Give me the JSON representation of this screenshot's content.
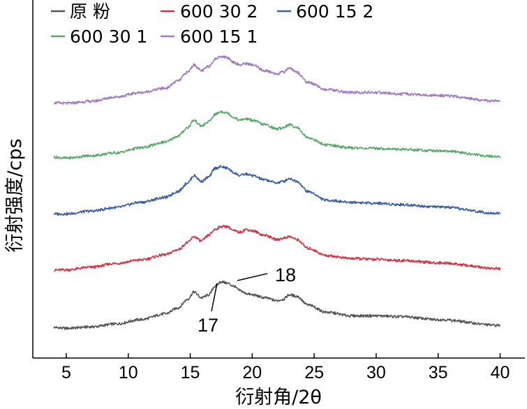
{
  "chart_data": {
    "type": "line",
    "xlabel": "衍射角/2θ",
    "ylabel": "衍射强度/cps",
    "xlim": [
      2.3,
      42.0
    ],
    "xticks": [
      5,
      10,
      15,
      20,
      25,
      30,
      35,
      40
    ],
    "ylim": [
      0,
      100
    ],
    "y_tick_labels": false,
    "grid": false,
    "legend_position": "top-left",
    "series": [
      {
        "name": "原 粉",
        "color": "#555555",
        "x": [
          4,
          5,
          7,
          9,
          11,
          13,
          14,
          14.8,
          15.3,
          15.9,
          16.5,
          17.0,
          17.5,
          18.0,
          18.5,
          19.0,
          19.5,
          20.0,
          21.0,
          22.0,
          22.5,
          23.0,
          23.6,
          24.5,
          26.0,
          28.0,
          30.0,
          32.0,
          35.0,
          40.0
        ],
        "y": [
          3.8,
          3.5,
          4.0,
          5.0,
          6.5,
          8.5,
          10.5,
          13.5,
          16.0,
          14.0,
          15.0,
          18.0,
          19.5,
          19.0,
          18.0,
          16.5,
          15.5,
          15.0,
          14.0,
          13.0,
          13.5,
          15.0,
          14.5,
          11.5,
          9.0,
          7.8,
          7.8,
          7.5,
          6.5,
          4.5
        ]
      },
      {
        "name": "600 30 2",
        "color": "#d43545",
        "x": [
          4,
          5,
          7,
          9,
          11,
          13,
          14,
          14.8,
          15.3,
          15.9,
          16.5,
          17.0,
          17.5,
          18.0,
          18.5,
          19.0,
          19.5,
          20.0,
          21.0,
          22.0,
          22.5,
          23.0,
          23.6,
          24.5,
          26.0,
          28.0,
          30.0,
          32.0,
          35.0,
          40.0
        ],
        "y": [
          23.5,
          23.6,
          24.5,
          25.8,
          27.0,
          28.8,
          30.5,
          33.0,
          35.0,
          33.5,
          35.5,
          37.5,
          38.5,
          38.5,
          37.0,
          36.5,
          37.5,
          37.0,
          35.5,
          34.0,
          34.5,
          35.0,
          34.0,
          31.0,
          28.5,
          27.5,
          27.2,
          26.8,
          26.0,
          24.0
        ]
      },
      {
        "name": "600 15 2",
        "color": "#3a5ea8",
        "x": [
          4,
          5,
          7,
          9,
          11,
          13,
          14,
          14.8,
          15.3,
          15.9,
          16.5,
          17.0,
          17.5,
          18.0,
          18.5,
          19.0,
          19.5,
          20.0,
          21.0,
          22.0,
          22.5,
          23.0,
          23.6,
          24.5,
          26.0,
          28.0,
          30.0,
          32.0,
          35.0,
          40.0
        ],
        "y": [
          42.8,
          42.8,
          43.8,
          45.0,
          46.8,
          48.5,
          50.5,
          53.5,
          56.0,
          54.0,
          55.5,
          58.5,
          59.0,
          58.5,
          57.0,
          56.0,
          56.5,
          56.0,
          54.5,
          53.5,
          54.0,
          55.0,
          54.0,
          50.5,
          47.5,
          46.8,
          46.5,
          46.0,
          45.2,
          43.0
        ]
      },
      {
        "name": "600 30 1",
        "color": "#5aa96a",
        "x": [
          4,
          5,
          7,
          9,
          11,
          13,
          14,
          14.8,
          15.3,
          15.9,
          16.5,
          17.0,
          17.5,
          18.0,
          18.5,
          19.0,
          19.5,
          20.0,
          21.0,
          22.0,
          22.5,
          23.0,
          23.6,
          24.5,
          26.0,
          28.0,
          30.0,
          32.0,
          35.0,
          40.0
        ],
        "y": [
          62.3,
          62.0,
          62.8,
          63.8,
          65.5,
          67.5,
          69.5,
          72.5,
          75.0,
          73.0,
          74.5,
          77.0,
          78.0,
          77.5,
          76.0,
          75.0,
          75.5,
          75.0,
          73.5,
          72.0,
          72.5,
          73.5,
          72.5,
          69.0,
          66.5,
          65.5,
          65.3,
          65.0,
          64.5,
          62.5
        ]
      },
      {
        "name": "600 15 1",
        "color": "#a07ac2",
        "x": [
          4,
          5,
          7,
          9,
          11,
          13,
          14,
          14.8,
          15.3,
          15.9,
          16.5,
          17.0,
          17.5,
          18.0,
          18.5,
          19.0,
          19.5,
          20.0,
          21.0,
          22.0,
          22.5,
          23.0,
          23.6,
          24.5,
          26.0,
          28.0,
          30.0,
          32.0,
          35.0,
          40.0
        ],
        "y": [
          81.0,
          80.8,
          81.5,
          83.0,
          84.5,
          86.0,
          88.5,
          91.5,
          94.0,
          92.0,
          93.5,
          96.0,
          97.0,
          96.5,
          95.0,
          94.0,
          94.5,
          94.0,
          92.0,
          91.0,
          91.5,
          93.0,
          91.5,
          88.0,
          85.5,
          84.5,
          84.5,
          84.0,
          83.5,
          81.5
        ]
      }
    ],
    "annotations": [
      {
        "text": "17",
        "x": 17.2,
        "y": 16.5
      },
      {
        "text": "18",
        "x": 18.2,
        "y": 19.0
      }
    ]
  }
}
